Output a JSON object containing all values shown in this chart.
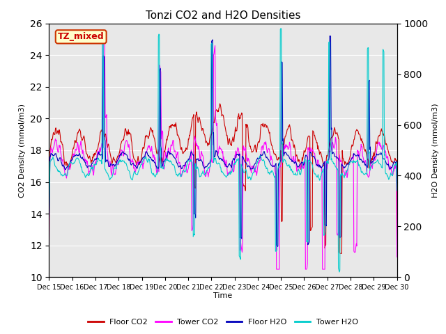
{
  "title": "Tonzi CO2 and H2O Densities",
  "xlabel": "Time",
  "ylabel_left": "CO2 Density (mmol/m3)",
  "ylabel_right": "H2O Density (mmol/m3)",
  "annotation": "TZ_mixed",
  "ylim_left": [
    10,
    26
  ],
  "ylim_right": [
    0,
    1000
  ],
  "colors": {
    "floor_co2": "#cc0000",
    "tower_co2": "#ff00ff",
    "floor_h2o": "#0000bb",
    "tower_h2o": "#00cccc"
  },
  "legend_labels": [
    "Floor CO2",
    "Tower CO2",
    "Floor H2O",
    "Tower H2O"
  ],
  "bg_color": "#e8e8e8",
  "x_ticks": [
    "Dec 15",
    "Dec 16",
    "Dec 17",
    "Dec 18",
    "Dec 19",
    "Dec 20",
    "Dec 21",
    "Dec 22",
    "Dec 23",
    "Dec 24",
    "Dec 25",
    "Dec 26",
    "Dec 27",
    "Dec 28",
    "Dec 29",
    "Dec 30"
  ],
  "annotation_bg": "#ffffcc",
  "annotation_border": "#cc3300",
  "annotation_text_color": "#cc0000"
}
